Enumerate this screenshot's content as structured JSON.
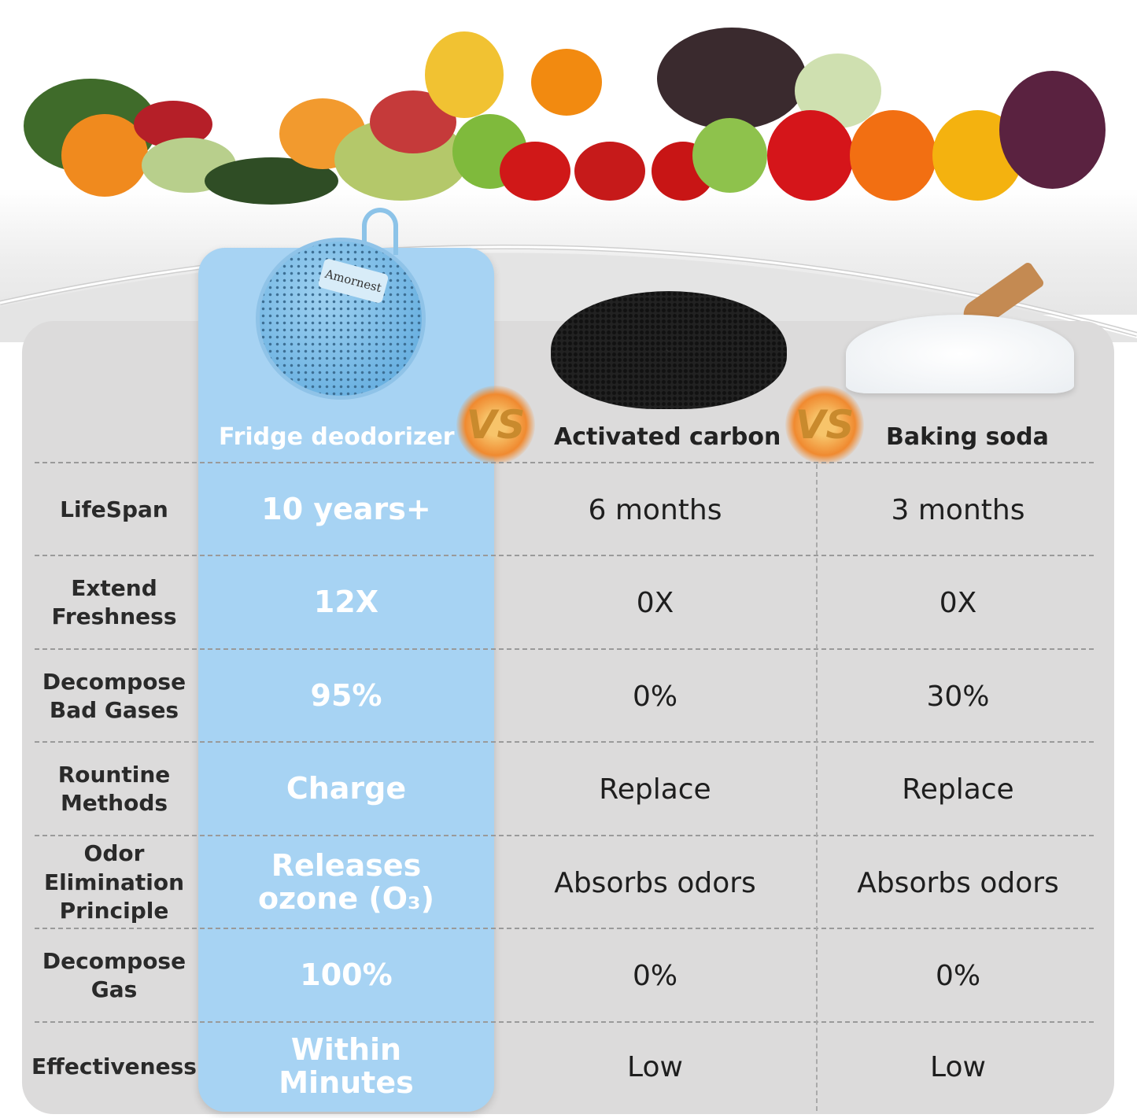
{
  "product": {
    "brand": "Amornest"
  },
  "vs_label": "VS",
  "columns": [
    {
      "header": "Fridge deodorizer",
      "highlight_color": "#a7d3f3"
    },
    {
      "header": "Activated carbon"
    },
    {
      "header": "Baking soda"
    }
  ],
  "rows": [
    {
      "label": "LifeSpan",
      "values": [
        "10 years+",
        "6 months",
        "3 months"
      ]
    },
    {
      "label": "Extend Freshness",
      "values": [
        "12X",
        "0X",
        "0X"
      ]
    },
    {
      "label": "Decompose Bad Gases",
      "values": [
        "95%",
        "0%",
        "30%"
      ]
    },
    {
      "label": "Rountine Methods",
      "values": [
        "Charge",
        "Replace",
        "Replace"
      ]
    },
    {
      "label": "Odor Elimination Principle",
      "values": [
        "Releases ozone (O₃)",
        "Absorbs odors",
        "Absorbs odors"
      ]
    },
    {
      "label": "Decompose Gas",
      "values": [
        "100%",
        "0%",
        "0%"
      ]
    },
    {
      "label": "Effectiveness",
      "values": [
        "Within Minutes",
        "Low",
        "Low"
      ]
    }
  ]
}
